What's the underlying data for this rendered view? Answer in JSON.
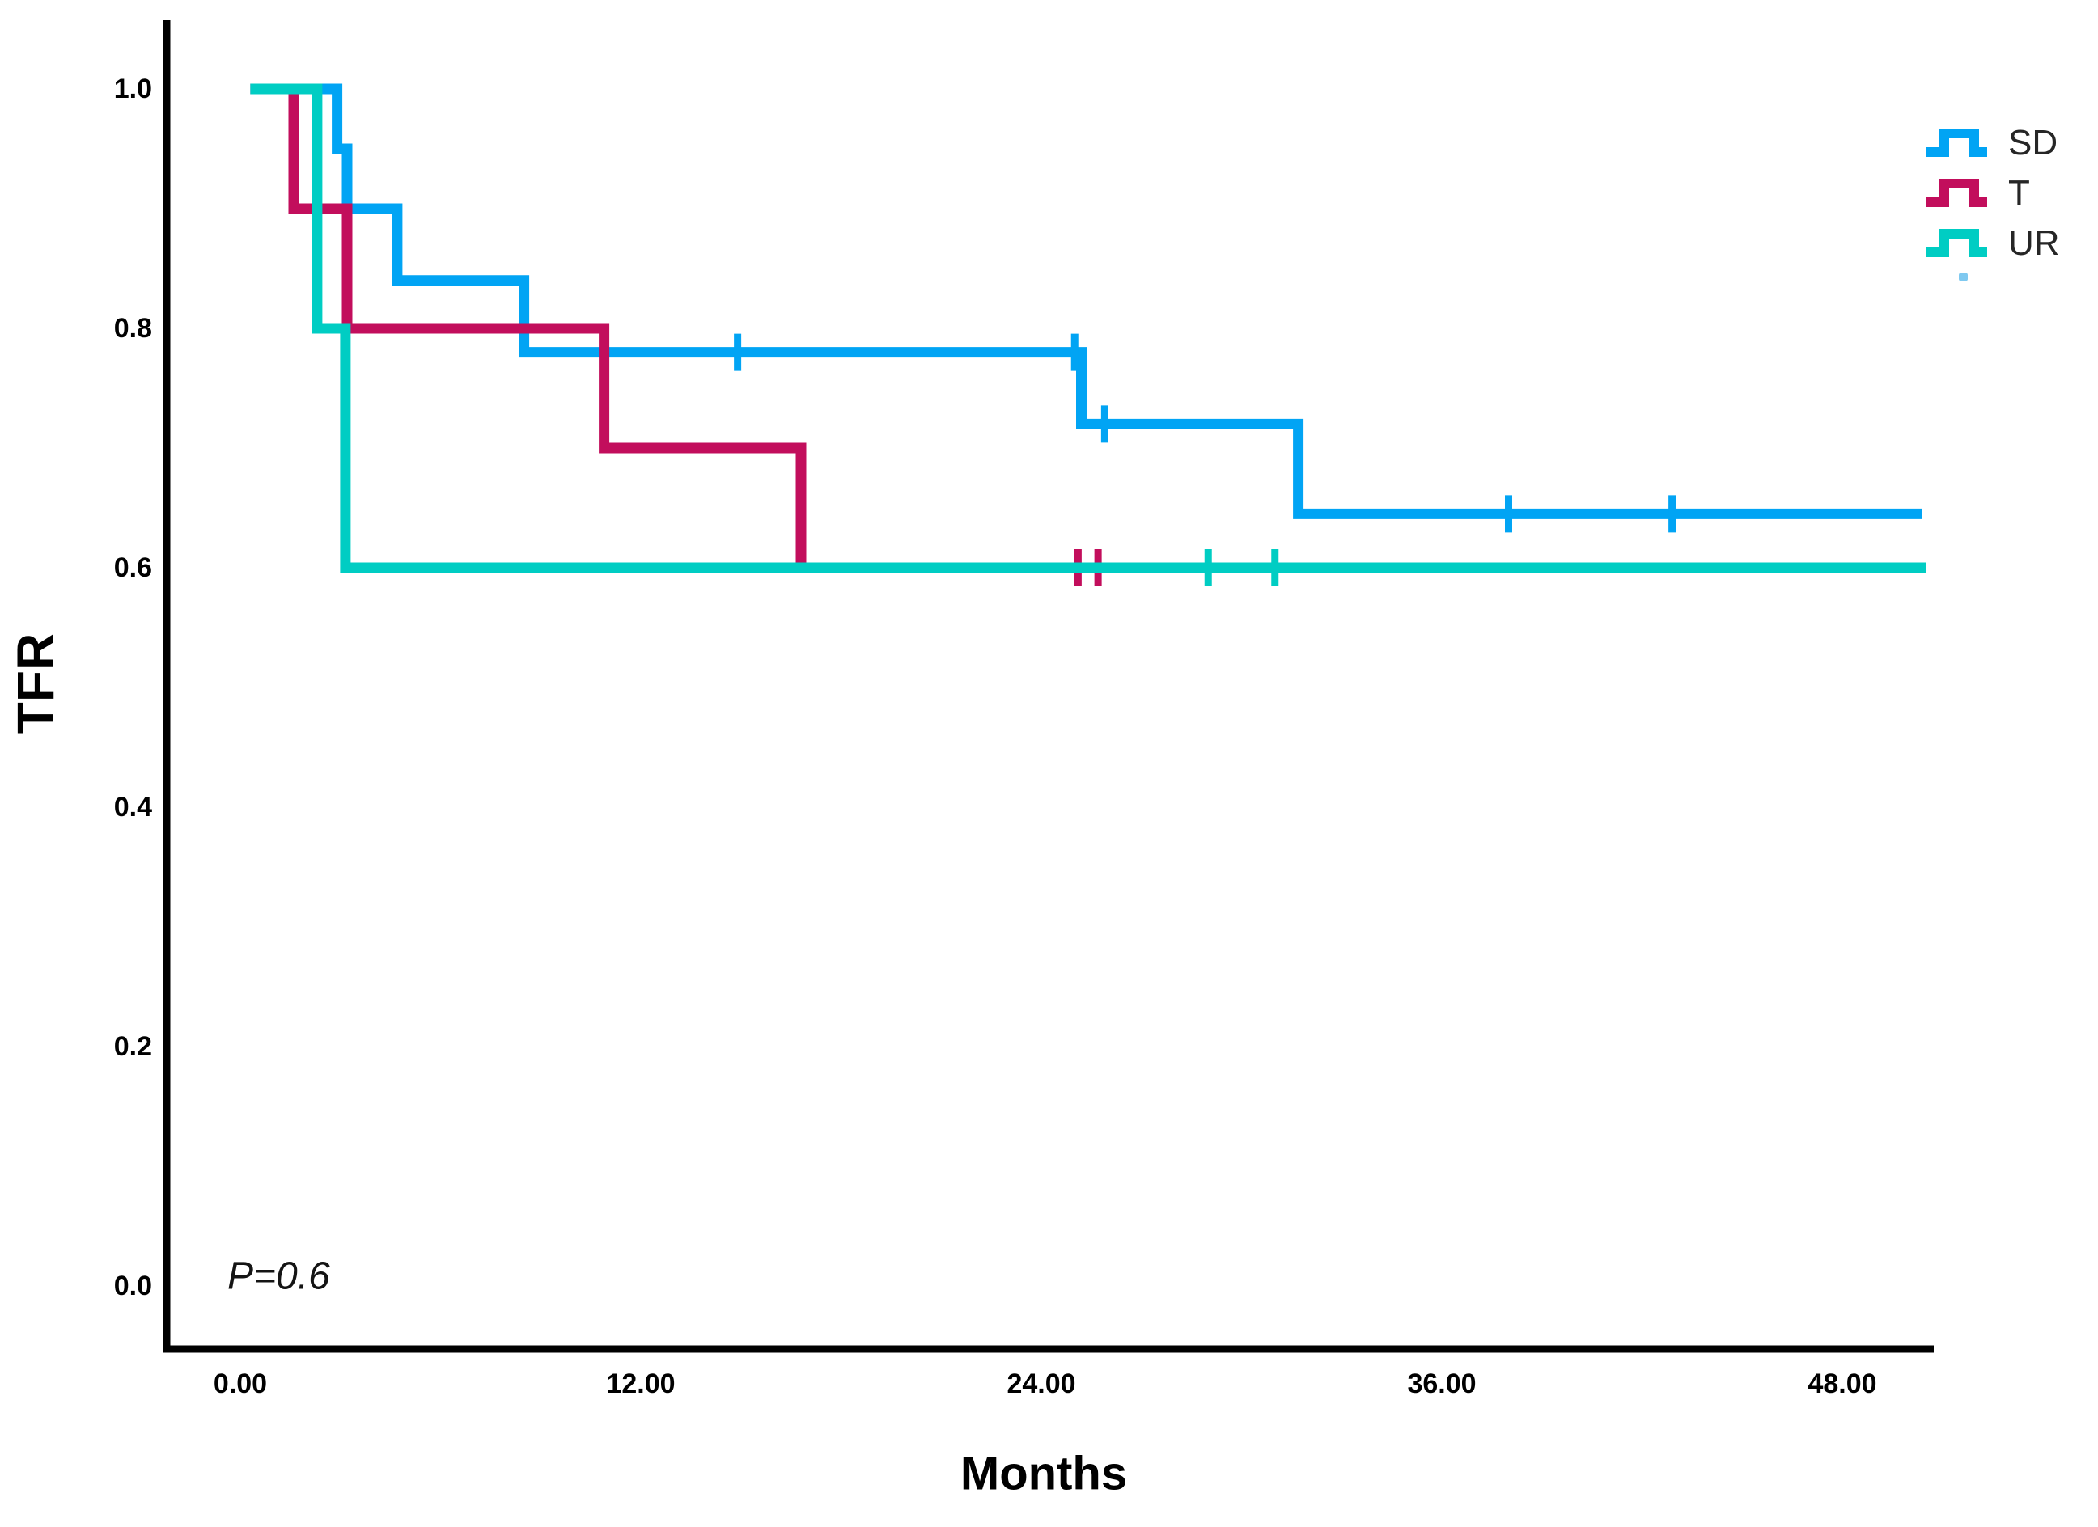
{
  "chart": {
    "y_title": "TFR",
    "x_title": "Months",
    "p_value": "P=0.6"
  },
  "chart_data": {
    "type": "line",
    "subtype": "kaplan-meier-step",
    "title": "",
    "xlabel": "Months",
    "ylabel": "TFR",
    "annotation": "P=0.6",
    "legend_position": "top-right",
    "grid": false,
    "xlim": [
      0,
      50.7
    ],
    "ylim": [
      0,
      1.06
    ],
    "x_tick_values": [
      0,
      12,
      24,
      36,
      48
    ],
    "x_tick_labels": [
      "0.00",
      "12.00",
      "24.00",
      "36.00",
      "48.00"
    ],
    "y_tick_values": [
      0.0,
      0.2,
      0.4,
      0.6,
      0.8,
      1.0
    ],
    "y_tick_labels": [
      "0.0",
      "0.2",
      "0.4",
      "0.6",
      "0.8",
      "1.0"
    ],
    "series": [
      {
        "name": "SD",
        "color": "#01a4f4",
        "start_month": 0.3,
        "start_value": 1.0,
        "end_month": 50.4,
        "steps": [
          [
            2.9,
            0.95
          ],
          [
            3.2,
            0.9
          ],
          [
            4.7,
            0.84
          ],
          [
            8.5,
            0.78
          ],
          [
            25.2,
            0.72
          ],
          [
            31.7,
            0.645
          ]
        ],
        "censor_marks": [
          [
            14.9,
            0.78
          ],
          [
            25.0,
            0.78
          ],
          [
            25.9,
            0.72
          ],
          [
            38.0,
            0.645
          ],
          [
            42.9,
            0.645
          ]
        ]
      },
      {
        "name": "T",
        "color": "#c20e5c",
        "start_month": 0.3,
        "start_value": 1.0,
        "end_month": 50.5,
        "steps": [
          [
            1.6,
            0.9
          ],
          [
            3.2,
            0.8
          ],
          [
            10.9,
            0.7
          ],
          [
            16.8,
            0.6
          ]
        ],
        "censor_marks": [
          [
            25.1,
            0.6
          ],
          [
            25.7,
            0.6
          ]
        ]
      },
      {
        "name": "UR",
        "color": "#00cdc3",
        "start_month": 0.3,
        "start_value": 1.0,
        "end_month": 50.5,
        "steps": [
          [
            2.3,
            0.8
          ],
          [
            3.15,
            0.6
          ]
        ],
        "censor_marks": [
          [
            29.0,
            0.6
          ],
          [
            31.0,
            0.6
          ]
        ]
      }
    ]
  }
}
